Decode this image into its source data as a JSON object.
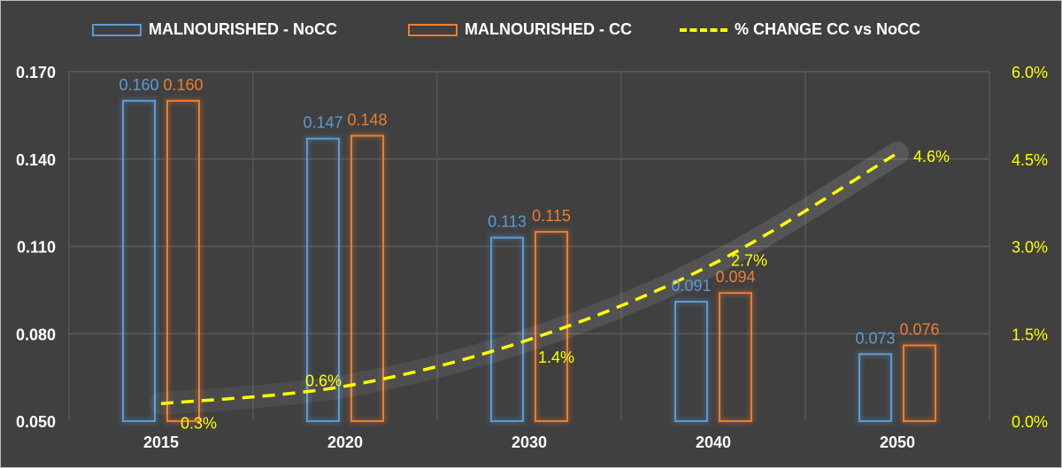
{
  "chart_data": {
    "type": "bar",
    "title": "",
    "categories": [
      "2015",
      "2020",
      "2030",
      "2040",
      "2050"
    ],
    "series": [
      {
        "name": "MALNOURISHED - NoCC",
        "kind": "bar",
        "axis": "left",
        "color": "#5b9bd5",
        "values": [
          0.16,
          0.147,
          0.113,
          0.091,
          0.073
        ],
        "labels": [
          "0.160",
          "0.147",
          "0.113",
          "0.091",
          "0.073"
        ]
      },
      {
        "name": "MALNOURISHED - CC",
        "kind": "bar",
        "axis": "left",
        "color": "#ed7d31",
        "values": [
          0.16,
          0.148,
          0.115,
          0.094,
          0.076
        ],
        "labels": [
          "0.160",
          "0.148",
          "0.115",
          "0.094",
          "0.076"
        ]
      },
      {
        "name": "% CHANGE CC vs NoCC",
        "kind": "line",
        "style": "dashed",
        "axis": "right",
        "color": "#ffff00",
        "values": [
          0.3,
          0.6,
          1.4,
          2.7,
          4.6
        ],
        "labels": [
          "0.3%",
          "0.6%",
          "1.4%",
          "2.7%",
          "4.6%"
        ]
      }
    ],
    "y_left": {
      "ylim": [
        0.05,
        0.17
      ],
      "ticks": [
        "0.050",
        "0.080",
        "0.110",
        "0.140",
        "0.170"
      ]
    },
    "y_right": {
      "ylim": [
        0.0,
        6.0
      ],
      "ticks": [
        "0.0%",
        "1.5%",
        "3.0%",
        "4.5%",
        "6.0%"
      ]
    },
    "xlabel": "",
    "ylabel": "",
    "grid": true,
    "legend": "top-center"
  }
}
